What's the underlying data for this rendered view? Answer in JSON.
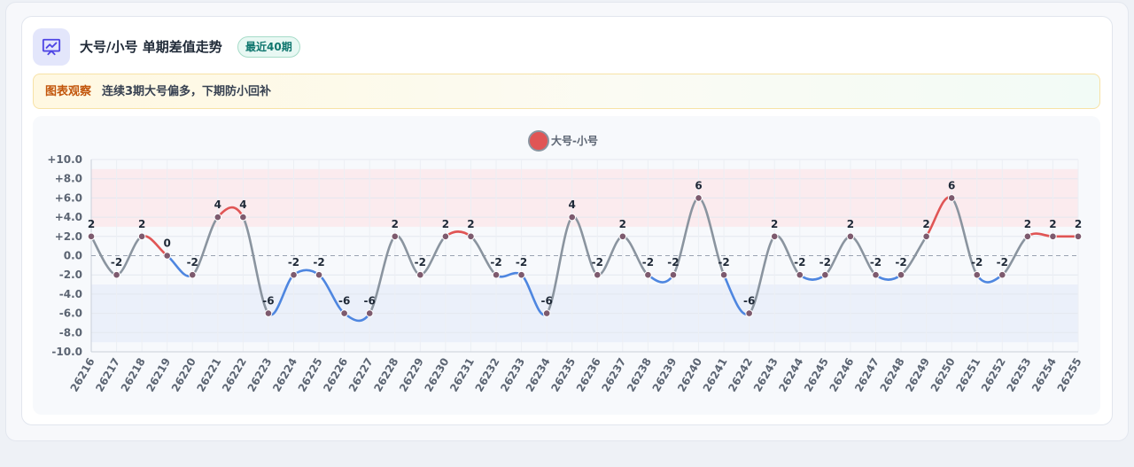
{
  "header": {
    "title": "大号/小号 单期差值走势",
    "badge": "最近40期",
    "icon": "chart-presentation-icon"
  },
  "note": {
    "label": "图表观察",
    "text": "连续3期大号偏多，下期防小回补"
  },
  "colors": {
    "positive": "#e05555",
    "negative": "#4e86e0",
    "neutral": "#8a949f",
    "positive_band": "#fbe9ec",
    "negative_band": "#e9eefa",
    "accent": "#4f46e5"
  },
  "chart_data": {
    "type": "line",
    "title": "",
    "legend": [
      "大号-小号"
    ],
    "legend_position": "top-center",
    "xlabel": "",
    "ylabel": "",
    "ylim": [
      -10,
      10
    ],
    "yticks": [
      -10,
      -8,
      -6,
      -4,
      -2,
      0,
      2,
      4,
      6,
      8,
      10
    ],
    "ytick_labels": [
      "-10.0",
      "-8.0",
      "-6.0",
      "-4.0",
      "-2.0",
      "0.0",
      "+2.0",
      "+4.0",
      "+6.0",
      "+8.0",
      "+10.0"
    ],
    "grid": true,
    "zero_line": "dashed",
    "bands": [
      {
        "from": 3,
        "to": 9,
        "kind": "positive"
      },
      {
        "from": -9,
        "to": -3,
        "kind": "negative"
      }
    ],
    "categories": [
      "26216",
      "26217",
      "26218",
      "26219",
      "26220",
      "26221",
      "26222",
      "26223",
      "26224",
      "26225",
      "26226",
      "26227",
      "26228",
      "26229",
      "26230",
      "26231",
      "26232",
      "26233",
      "26234",
      "26235",
      "26236",
      "26237",
      "26238",
      "26239",
      "26240",
      "26241",
      "26242",
      "26243",
      "26244",
      "26245",
      "26246",
      "26247",
      "26248",
      "26249",
      "26250",
      "26251",
      "26252",
      "26253",
      "26254",
      "26255"
    ],
    "series": [
      {
        "name": "大号-小号",
        "values": [
          2,
          -2,
          2,
          0,
          -2,
          4,
          4,
          -6,
          -2,
          -2,
          -6,
          -6,
          2,
          -2,
          2,
          2,
          -2,
          -2,
          -6,
          4,
          -2,
          2,
          -2,
          -2,
          6,
          -2,
          -6,
          2,
          -2,
          -2,
          2,
          -2,
          -2,
          2,
          6,
          -2,
          -2,
          2,
          2,
          2
        ]
      }
    ]
  }
}
